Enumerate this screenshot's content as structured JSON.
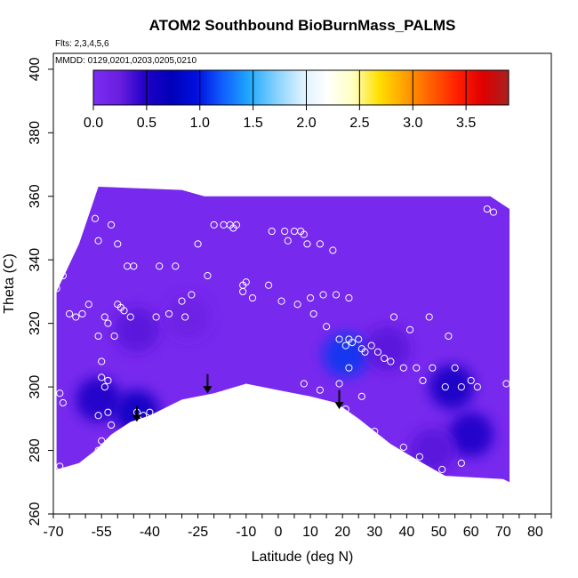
{
  "chart_data": {
    "type": "heatmap",
    "title": "ATOM2 Southbound BioBurnMass_PALMS",
    "subtitle_flights": "Flts: 2,3,4,5,6",
    "subtitle_dates": "MMDD: 0129,0201,0203,0205,0210",
    "xlabel": "Latitude (deg N)",
    "ylabel": "Theta (C)",
    "xlim": [
      -70,
      85
    ],
    "ylim": [
      260,
      405
    ],
    "x_ticks": [
      -70,
      -55,
      -40,
      -25,
      -10,
      0,
      10,
      20,
      30,
      40,
      50,
      60,
      70,
      80
    ],
    "y_ticks": [
      260,
      280,
      300,
      320,
      340,
      360,
      380,
      400
    ],
    "colorbar": {
      "range": [
        0,
        3.9
      ],
      "ticks": [
        0.0,
        0.5,
        1.0,
        1.5,
        2.0,
        2.5,
        3.0,
        3.5
      ],
      "tick_labels": [
        "0.0",
        "0.5",
        "1.0",
        "1.5",
        "2.0",
        "2.5",
        "3.0",
        "3.5"
      ],
      "stops": [
        "#7b2cf2",
        "#6a1fe0",
        "#2000c8",
        "#0000b8",
        "#0010e0",
        "#1060ff",
        "#20a8ff",
        "#80d0ff",
        "#d8f0ff",
        "#ffffff",
        "#ffffc0",
        "#ffe000",
        "#ffa000",
        "#ff6000",
        "#ff2000",
        "#e00000",
        "#a82020"
      ]
    },
    "data_boundary": {
      "top": [
        [
          -69,
          330
        ],
        [
          -62,
          345
        ],
        [
          -58,
          357
        ],
        [
          -56,
          363
        ],
        [
          -30,
          362
        ],
        [
          -23,
          360
        ],
        [
          66,
          360
        ],
        [
          72,
          356
        ]
      ],
      "bottom": [
        [
          72,
          270
        ],
        [
          70,
          271
        ],
        [
          52,
          272
        ],
        [
          45,
          276
        ],
        [
          35,
          282
        ],
        [
          25,
          290
        ],
        [
          18,
          295
        ],
        [
          10,
          297
        ],
        [
          0,
          299
        ],
        [
          -10,
          301
        ],
        [
          -20,
          298
        ],
        [
          -30,
          296
        ],
        [
          -40,
          291
        ],
        [
          -46,
          289
        ],
        [
          -52,
          285
        ],
        [
          -57,
          280
        ],
        [
          -62,
          276
        ],
        [
          -69,
          274
        ]
      ]
    },
    "field_features": [
      {
        "center": [
          -56,
          296
        ],
        "value": 0.5
      },
      {
        "center": [
          -44,
          292
        ],
        "value": 0.6
      },
      {
        "center": [
          -44,
          318
        ],
        "value": 0.3
      },
      {
        "center": [
          -28,
          322
        ],
        "value": 0.2
      },
      {
        "center": [
          21,
          310
        ],
        "value": 1.1
      },
      {
        "center": [
          34,
          312
        ],
        "value": 0.3
      },
      {
        "center": [
          54,
          300
        ],
        "value": 0.55
      },
      {
        "center": [
          60,
          285
        ],
        "value": 0.5
      },
      {
        "center": [
          48,
          280
        ],
        "value": 0.3
      }
    ],
    "samples": [
      [
        -69,
        331
      ],
      [
        -68,
        337
      ],
      [
        -67,
        335
      ],
      [
        -68,
        298
      ],
      [
        -67,
        295
      ],
      [
        -68,
        275
      ],
      [
        -65,
        323
      ],
      [
        -63,
        322
      ],
      [
        -61,
        323
      ],
      [
        -59,
        326
      ],
      [
        -57,
        353
      ],
      [
        -56,
        346
      ],
      [
        -52,
        351
      ],
      [
        -50,
        345
      ],
      [
        -47,
        338
      ],
      [
        -45,
        338
      ],
      [
        -56,
        316
      ],
      [
        -54,
        322
      ],
      [
        -53,
        320
      ],
      [
        -51,
        316
      ],
      [
        -50,
        326
      ],
      [
        -49,
        325
      ],
      [
        -48,
        324
      ],
      [
        -46,
        322
      ],
      [
        -55,
        308
      ],
      [
        -55,
        303
      ],
      [
        -54,
        300
      ],
      [
        -53,
        302
      ],
      [
        -56,
        291
      ],
      [
        -53,
        292
      ],
      [
        -56,
        280
      ],
      [
        -55,
        283
      ],
      [
        -52,
        288
      ],
      [
        -44,
        292
      ],
      [
        -42,
        291
      ],
      [
        -40,
        292
      ],
      [
        -37,
        338
      ],
      [
        -32,
        338
      ],
      [
        -34,
        323
      ],
      [
        -38,
        322
      ],
      [
        -30,
        327
      ],
      [
        -29,
        322
      ],
      [
        -27,
        329
      ],
      [
        -22,
        335
      ],
      [
        -25,
        345
      ],
      [
        -20,
        351
      ],
      [
        -17,
        351
      ],
      [
        -15,
        351
      ],
      [
        -14,
        350
      ],
      [
        -13,
        351
      ],
      [
        -11,
        332
      ],
      [
        -10,
        333
      ],
      [
        -11,
        330
      ],
      [
        -8,
        328
      ],
      [
        -3,
        332
      ],
      [
        1,
        327
      ],
      [
        -2,
        349
      ],
      [
        2,
        349
      ],
      [
        3,
        346
      ],
      [
        5,
        349
      ],
      [
        7,
        349
      ],
      [
        8,
        348
      ],
      [
        9,
        345
      ],
      [
        6,
        326
      ],
      [
        10,
        328
      ],
      [
        11,
        323
      ],
      [
        14,
        329
      ],
      [
        18,
        329
      ],
      [
        22,
        328
      ],
      [
        13,
        345
      ],
      [
        17,
        343
      ],
      [
        8,
        301
      ],
      [
        13,
        299
      ],
      [
        19,
        301
      ],
      [
        21,
        293
      ],
      [
        15,
        319
      ],
      [
        19,
        315
      ],
      [
        21,
        313
      ],
      [
        22,
        315
      ],
      [
        23,
        314
      ],
      [
        25,
        315
      ],
      [
        26,
        312
      ],
      [
        27,
        311
      ],
      [
        29,
        313
      ],
      [
        31,
        311
      ],
      [
        33,
        309
      ],
      [
        22,
        306
      ],
      [
        26,
        297
      ],
      [
        30,
        286
      ],
      [
        35,
        308
      ],
      [
        36,
        322
      ],
      [
        39,
        306
      ],
      [
        41,
        318
      ],
      [
        43,
        306
      ],
      [
        45,
        302
      ],
      [
        47,
        322
      ],
      [
        48,
        306
      ],
      [
        52,
        300
      ],
      [
        53,
        316
      ],
      [
        55,
        306
      ],
      [
        57,
        300
      ],
      [
        60,
        302
      ],
      [
        62,
        300
      ],
      [
        51,
        274
      ],
      [
        57,
        276
      ],
      [
        39,
        281
      ],
      [
        44,
        278
      ],
      [
        65,
        356
      ],
      [
        67,
        355
      ],
      [
        71,
        301
      ]
    ],
    "arrows": [
      {
        "x": -44,
        "y_top": 294,
        "y_tip": 289
      },
      {
        "x": -22,
        "y_top": 304,
        "y_tip": 298
      },
      {
        "x": 19,
        "y_top": 299,
        "y_tip": 293
      }
    ]
  }
}
